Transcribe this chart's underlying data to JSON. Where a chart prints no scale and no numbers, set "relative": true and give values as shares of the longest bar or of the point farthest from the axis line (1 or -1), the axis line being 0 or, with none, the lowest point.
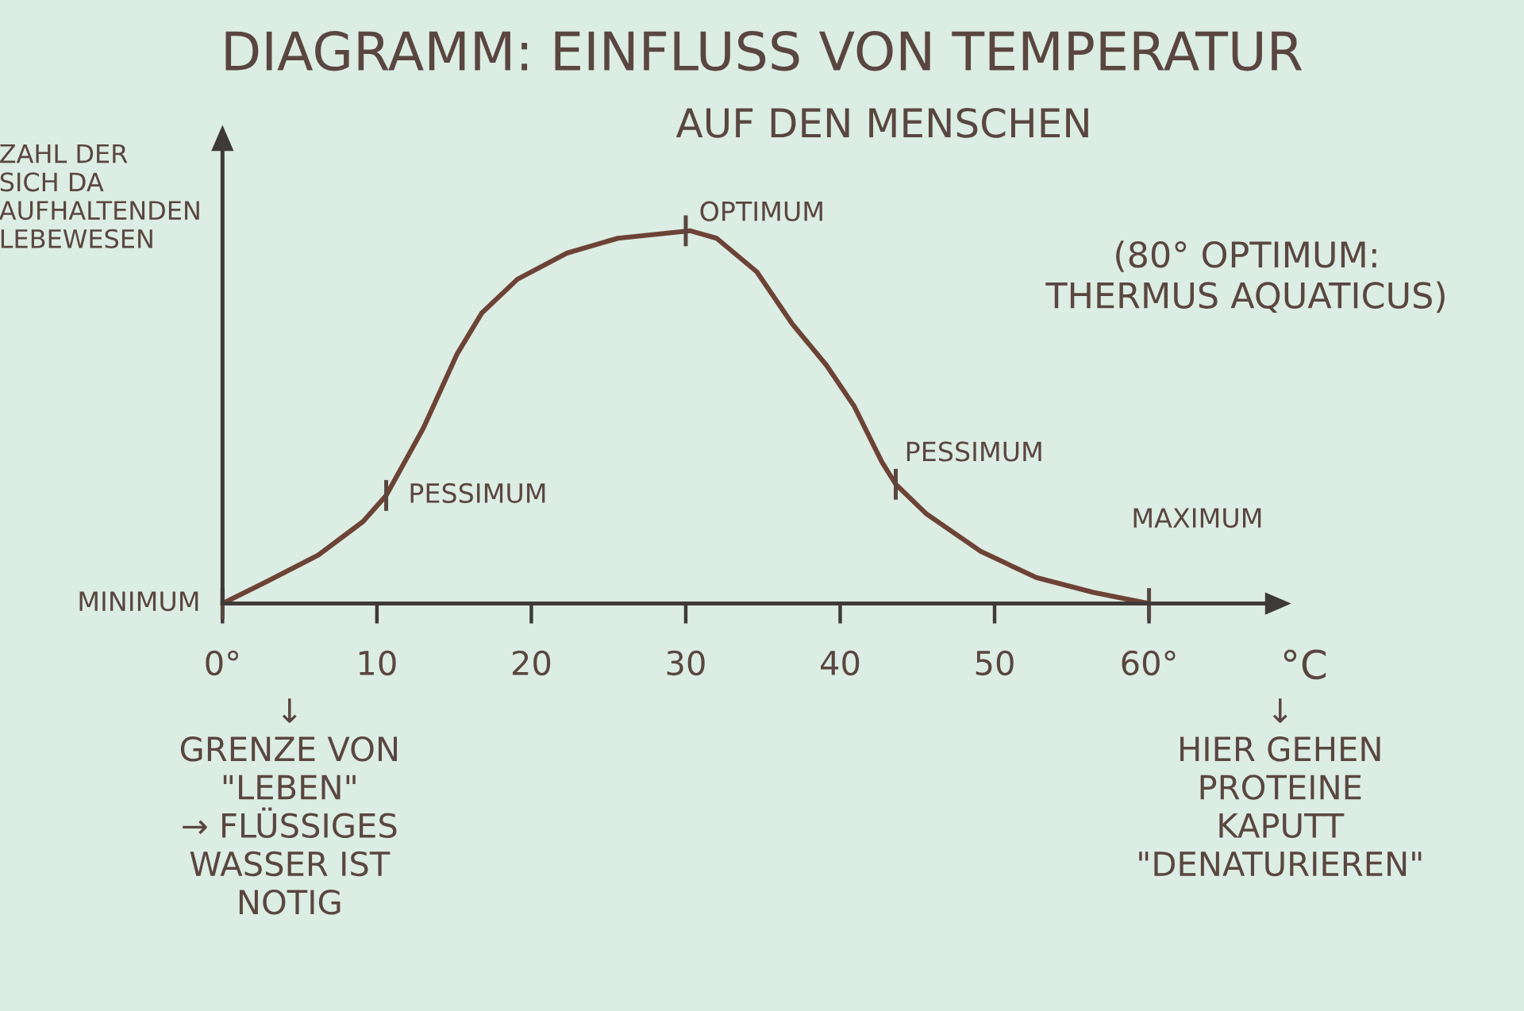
{
  "chart_data": {
    "type": "line",
    "title": "DIAGRAMM: EINFLUSS VON TEMPERATUR",
    "subtitle": "AUF DEN MENSCHEN",
    "xlabel": "°C",
    "ylabel": "ZAHL DER\nSICH DA\nAUFHALTENDEN\nLEBEWESEN",
    "relative": true,
    "x": [
      0,
      2.9,
      6.2,
      9.1,
      10.6,
      13.0,
      15.2,
      16.8,
      19.1,
      22.3,
      25.6,
      30.3,
      32.0,
      34.6,
      36.9,
      39.1,
      40.9,
      42.7,
      43.6,
      45.6,
      49.1,
      52.7,
      56.4,
      60
    ],
    "values": [
      0,
      0.06,
      0.13,
      0.22,
      0.29,
      0.47,
      0.67,
      0.78,
      0.87,
      0.94,
      0.98,
      1,
      0.98,
      0.89,
      0.75,
      0.64,
      0.53,
      0.38,
      0.32,
      0.24,
      0.14,
      0.07,
      0.03,
      0
    ],
    "color": "#6d4336",
    "line_style": "solid",
    "xlim": [
      0,
      68
    ],
    "xticks": [
      {
        "value": 0,
        "label": "0°"
      },
      10,
      20,
      30,
      40,
      50,
      {
        "value": 60,
        "label": "60°"
      }
    ],
    "annotations": [
      {
        "text": "MINIMUM",
        "x": 0,
        "y": 0
      },
      {
        "text": "PESSIMUM",
        "x": 10.6,
        "y": 0.29
      },
      {
        "text": "OPTIMUM",
        "x": 30,
        "y": 1
      },
      {
        "text": "PESSIMUM",
        "x": 43.6,
        "y": 0.32
      },
      {
        "text": "MAXIMUM",
        "x": 60,
        "y": 0
      },
      "(80° OPTIMUM:\nTHERMUS AQUATICUS)",
      "↓\nGRENZE VON\n\"LEBEN\"\n→ FLÜSSIGES\nWASSER IST\nNOTIG",
      "↓\nHIER GEHEN\nPROTEINE\nKAPUTT\n\"DENATURIEREN\""
    ]
  }
}
